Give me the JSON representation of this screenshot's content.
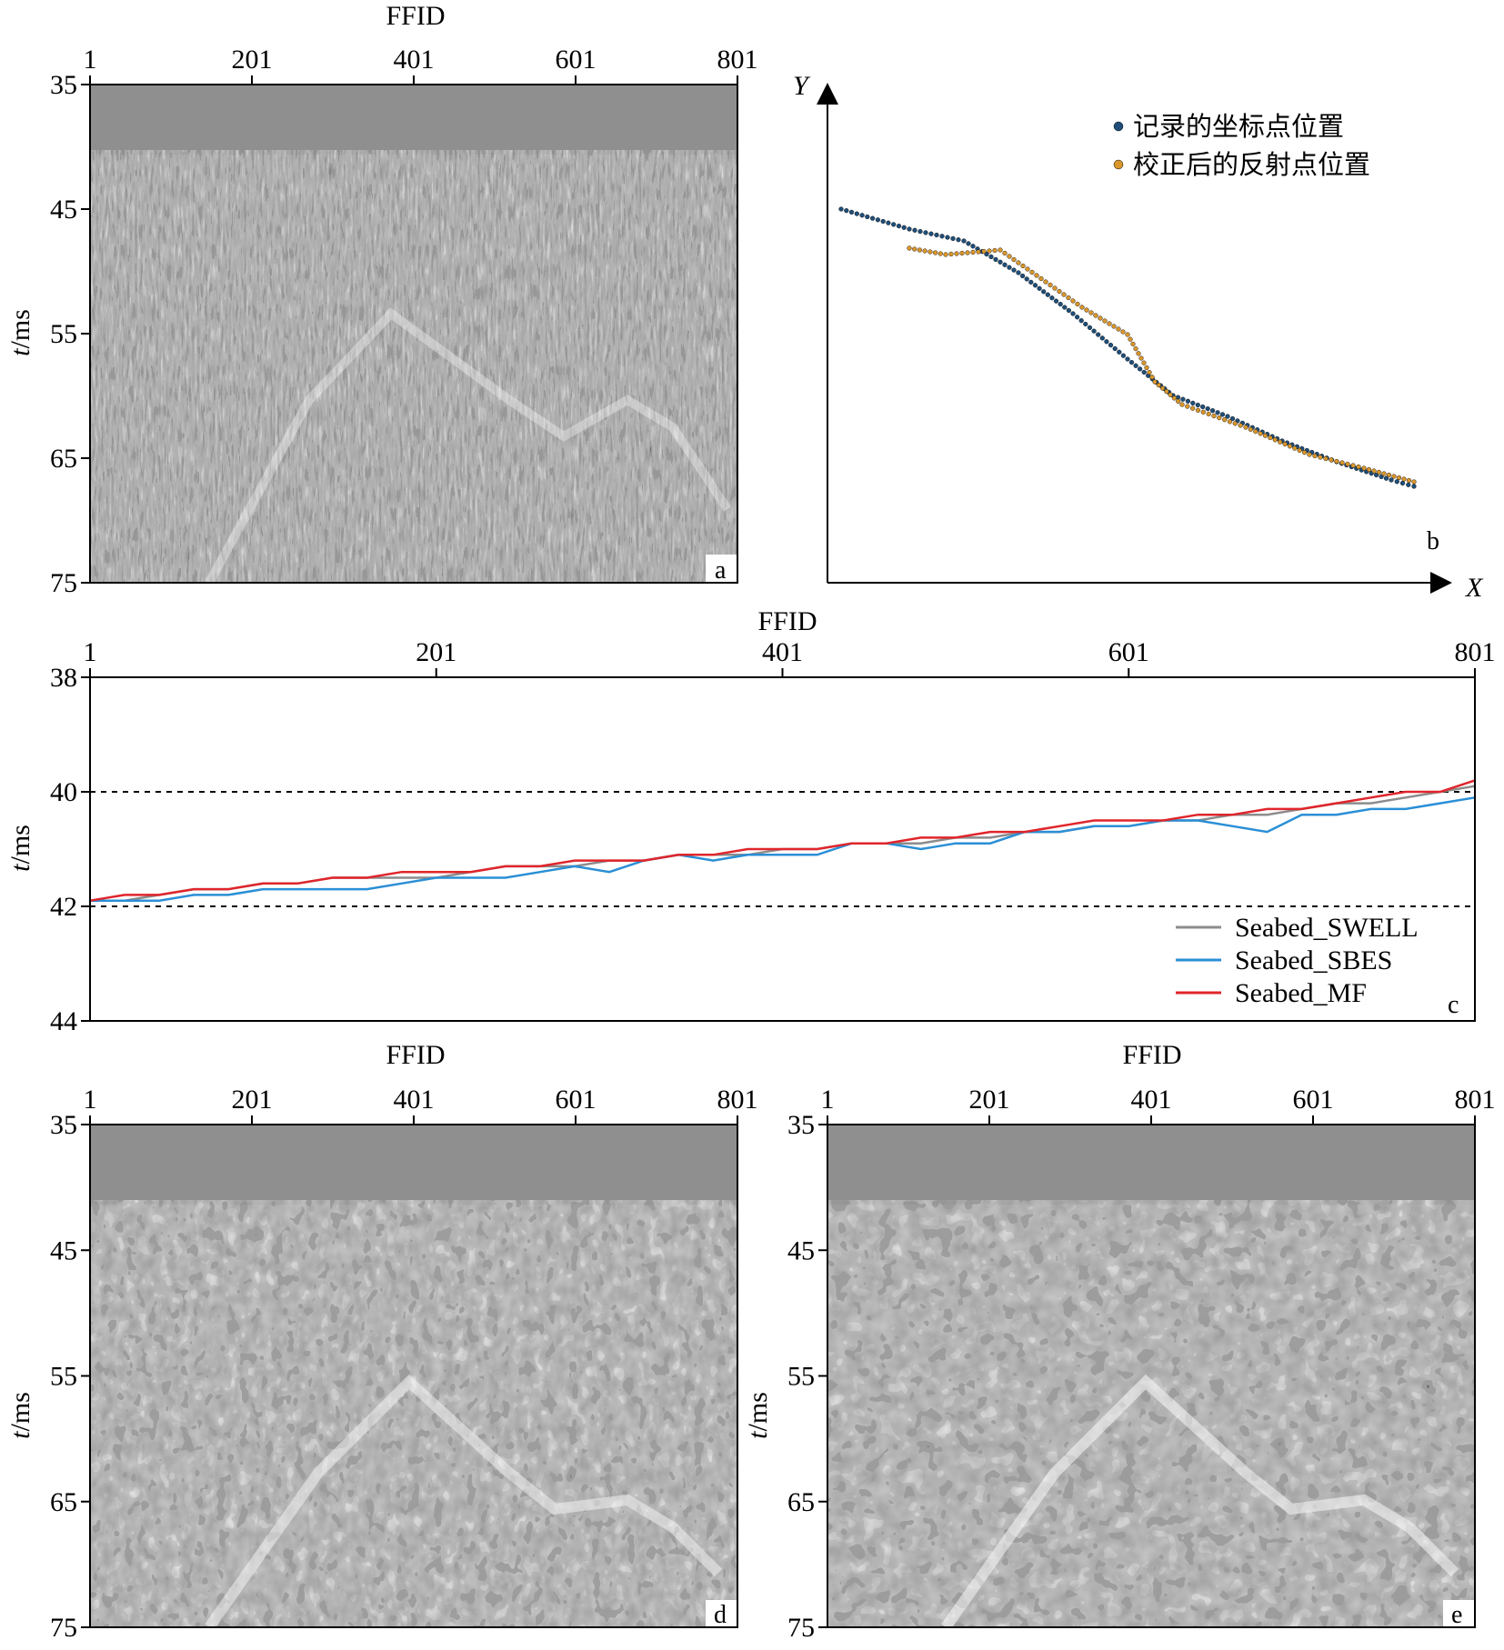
{
  "colors": {
    "swell": "#8c8c8c",
    "sbes": "#2a8fd6",
    "mf": "#e0252b",
    "recorded": "#1f4e79",
    "corrected": "#d9962b"
  },
  "panel_a": {
    "xlabel": "FFID",
    "xticks": [
      "1",
      "201",
      "401",
      "601",
      "801"
    ],
    "ylabel_italic": "t",
    "ylabel_unit": "/ms",
    "yticks": [
      "35",
      "45",
      "55",
      "65",
      "75"
    ],
    "letter": "a"
  },
  "panel_b": {
    "xaxis_label": "X",
    "yaxis_label": "Y",
    "legend": [
      "记录的坐标点位置",
      "校正后的反射点位置"
    ],
    "letter": "b"
  },
  "panel_d": {
    "xlabel": "FFID",
    "xticks": [
      "1",
      "201",
      "401",
      "601",
      "801"
    ],
    "ylabel_italic": "t",
    "ylabel_unit": "/ms",
    "yticks": [
      "35",
      "45",
      "55",
      "65",
      "75"
    ],
    "letter": "d"
  },
  "panel_e": {
    "xlabel": "FFID",
    "xticks": [
      "1",
      "201",
      "401",
      "601",
      "801"
    ],
    "ylabel_italic": "t",
    "ylabel_unit": "/ms",
    "yticks": [
      "35",
      "45",
      "55",
      "65",
      "75"
    ],
    "letter": "e"
  },
  "chart_data": {
    "type": "line",
    "title": "",
    "xlabel": "FFID",
    "ylabel": "t/ms",
    "xlim": [
      1,
      801
    ],
    "ylim": [
      38,
      44
    ],
    "y_inverted": true,
    "xticks": [
      "1",
      "201",
      "401",
      "601",
      "801"
    ],
    "yticks": [
      "38",
      "40",
      "42",
      "44"
    ],
    "reference_lines": [
      40,
      42
    ],
    "legend_position": "bottom-right",
    "letter": "c",
    "x": [
      1,
      21,
      41,
      61,
      81,
      101,
      121,
      141,
      161,
      181,
      201,
      221,
      241,
      261,
      281,
      301,
      321,
      341,
      361,
      381,
      401,
      421,
      441,
      461,
      481,
      501,
      521,
      541,
      561,
      581,
      601,
      621,
      641,
      661,
      681,
      701,
      721,
      741,
      761,
      781,
      801
    ],
    "series": [
      {
        "name": "Seabed_SWELL",
        "values": [
          41.9,
          41.9,
          41.8,
          41.7,
          41.7,
          41.6,
          41.6,
          41.5,
          41.5,
          41.5,
          41.5,
          41.4,
          41.3,
          41.3,
          41.3,
          41.2,
          41.2,
          41.1,
          41.1,
          41.1,
          41.0,
          41.0,
          40.9,
          40.9,
          40.9,
          40.8,
          40.8,
          40.7,
          40.7,
          40.6,
          40.6,
          40.5,
          40.5,
          40.4,
          40.4,
          40.3,
          40.2,
          40.2,
          40.1,
          40.0,
          39.9
        ]
      },
      {
        "name": "Seabed_SBES",
        "values": [
          41.9,
          41.9,
          41.9,
          41.8,
          41.8,
          41.7,
          41.7,
          41.7,
          41.7,
          41.6,
          41.5,
          41.5,
          41.5,
          41.4,
          41.3,
          41.4,
          41.2,
          41.1,
          41.2,
          41.1,
          41.1,
          41.1,
          40.9,
          40.9,
          41.0,
          40.9,
          40.9,
          40.7,
          40.7,
          40.6,
          40.6,
          40.5,
          40.5,
          40.6,
          40.7,
          40.4,
          40.4,
          40.3,
          40.3,
          40.2,
          40.1
        ]
      },
      {
        "name": "Seabed_MF",
        "values": [
          41.9,
          41.8,
          41.8,
          41.7,
          41.7,
          41.6,
          41.6,
          41.5,
          41.5,
          41.4,
          41.4,
          41.4,
          41.3,
          41.3,
          41.2,
          41.2,
          41.2,
          41.1,
          41.1,
          41.0,
          41.0,
          41.0,
          40.9,
          40.9,
          40.8,
          40.8,
          40.7,
          40.7,
          40.6,
          40.5,
          40.5,
          40.5,
          40.4,
          40.4,
          40.3,
          40.3,
          40.2,
          40.1,
          40.0,
          40.0,
          39.8
        ]
      }
    ]
  }
}
